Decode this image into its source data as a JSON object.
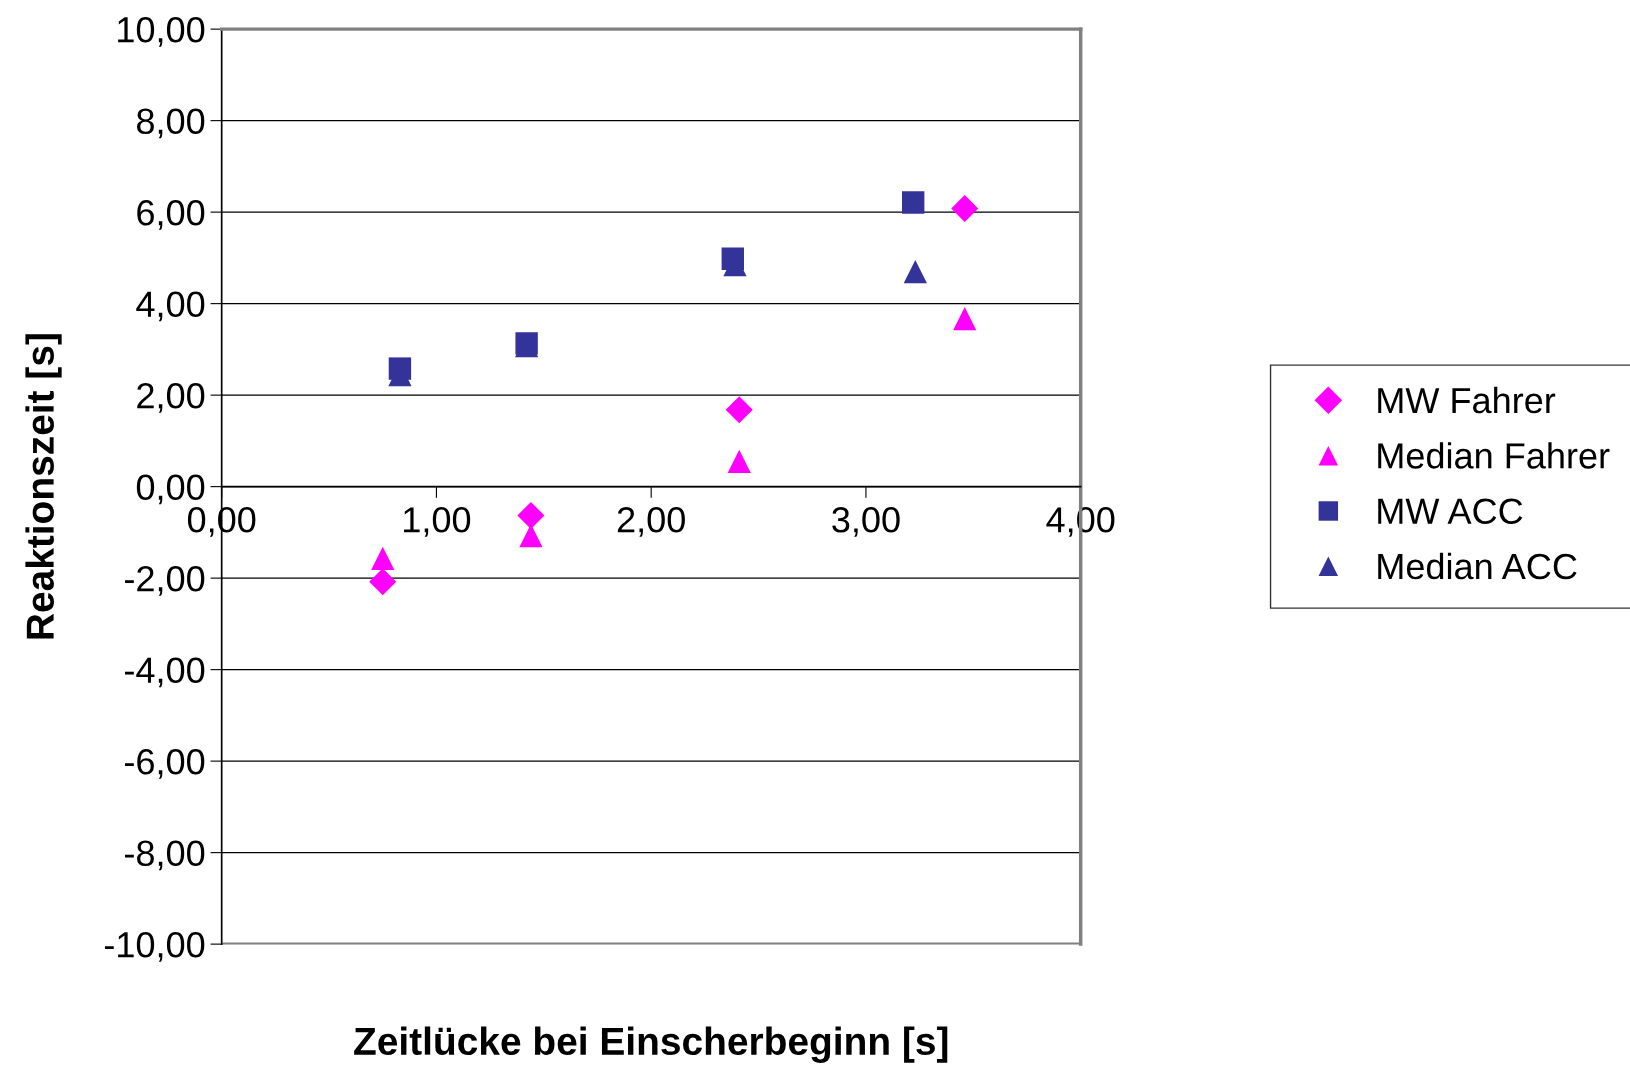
{
  "chart_data": {
    "type": "scatter",
    "xlabel": "Zeitlücke bei Einscherbeginn [s]",
    "ylabel": "Reaktionszeit [s]",
    "xlim": [
      0,
      4
    ],
    "xticks": [
      {
        "value": 0,
        "label": "0,00"
      },
      {
        "value": 1,
        "label": "1,00"
      },
      {
        "value": 2,
        "label": "2,00"
      },
      {
        "value": 3,
        "label": "3,00"
      },
      {
        "value": 4,
        "label": "4,00"
      }
    ],
    "ylim": [
      -10,
      10
    ],
    "yticks": [
      {
        "value": -10,
        "label": "-10,00"
      },
      {
        "value": -8,
        "label": "-8,00"
      },
      {
        "value": -6,
        "label": "-6,00"
      },
      {
        "value": -4,
        "label": "-4,00"
      },
      {
        "value": -2,
        "label": "-2,00"
      },
      {
        "value": 0,
        "label": "0,00"
      },
      {
        "value": 2,
        "label": "2,00"
      },
      {
        "value": 4,
        "label": "4,00"
      },
      {
        "value": 6,
        "label": "6,00"
      },
      {
        "value": 8,
        "label": "8,00"
      },
      {
        "value": 10,
        "label": "10,00"
      }
    ],
    "grid": "y",
    "legend": "right",
    "series": [
      {
        "name": "MW Fahrer",
        "color": "#ff00ff",
        "marker": "diamond",
        "x": [
          0.75,
          1.44,
          2.41,
          3.46
        ],
        "values": [
          -2.08,
          -0.63,
          1.68,
          6.08
        ]
      },
      {
        "name": "Median Fahrer",
        "color": "#ff00ff",
        "marker": "triangle",
        "x": [
          0.75,
          1.44,
          2.41,
          3.46
        ],
        "values": [
          -1.57,
          -1.07,
          0.55,
          3.67
        ]
      },
      {
        "name": "MW ACC",
        "color": "#333399",
        "marker": "square",
        "x": [
          0.83,
          1.42,
          2.38,
          3.22
        ],
        "values": [
          2.58,
          3.13,
          4.98,
          6.21
        ]
      },
      {
        "name": "Median ACC",
        "color": "#333399",
        "marker": "triangle",
        "x": [
          0.83,
          1.42,
          2.39,
          3.23
        ],
        "values": [
          2.45,
          3.08,
          4.85,
          4.7
        ]
      }
    ]
  }
}
